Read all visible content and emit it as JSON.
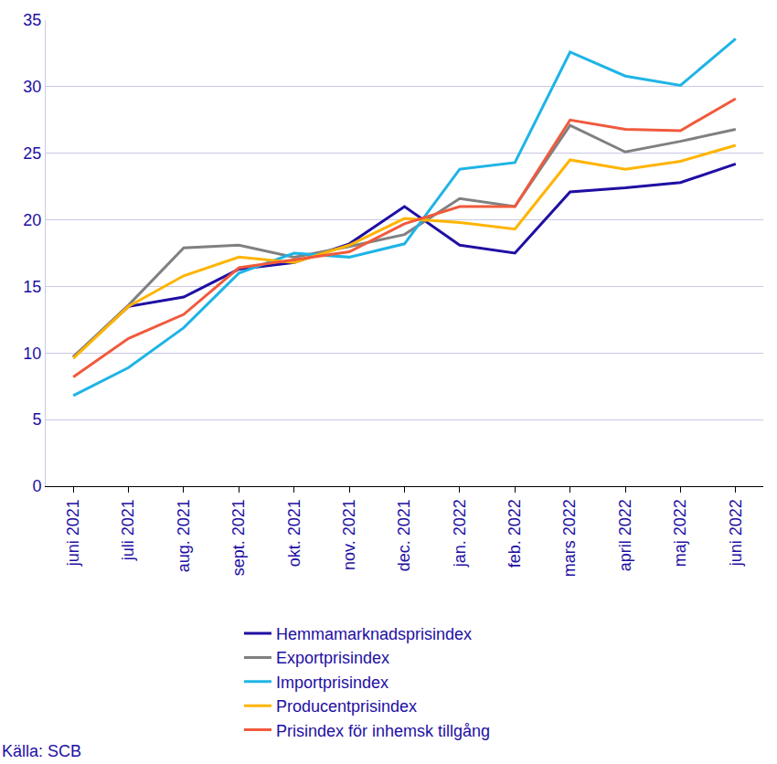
{
  "chart_data": {
    "type": "line",
    "source": "Källa: SCB",
    "categories": [
      "juni 2021",
      "juli 2021",
      "aug. 2021",
      "sept. 2021",
      "okt. 2021",
      "nov. 2021",
      "dec. 2021",
      "jan. 2022",
      "feb. 2022",
      "mars 2022",
      "april 2022",
      "maj 2022",
      "juni 2022"
    ],
    "series": [
      {
        "name": "Hemmamarknadsprisindex",
        "color": "#1e0fa3",
        "values": [
          9.7,
          13.5,
          14.2,
          16.3,
          16.8,
          18.2,
          21.0,
          18.1,
          17.5,
          22.1,
          22.4,
          22.8,
          24.2
        ]
      },
      {
        "name": "Exportprisindex",
        "color": "#808080",
        "values": [
          9.7,
          13.6,
          17.9,
          18.1,
          17.2,
          18.0,
          18.9,
          21.6,
          21.0,
          27.1,
          25.1,
          25.9,
          26.8
        ]
      },
      {
        "name": "Importprisindex",
        "color": "#1eb4e6",
        "values": [
          6.8,
          8.9,
          11.9,
          16.0,
          17.5,
          17.2,
          18.2,
          23.8,
          24.3,
          32.6,
          30.8,
          30.1,
          33.6
        ]
      },
      {
        "name": "Producentprisindex",
        "color": "#ffb400",
        "values": [
          9.6,
          13.5,
          15.8,
          17.2,
          16.8,
          18.1,
          20.1,
          19.8,
          19.3,
          24.5,
          23.8,
          24.4,
          25.6
        ]
      },
      {
        "name": "Prisindex för inhemsk tillgång",
        "color": "#f05a3c",
        "values": [
          8.2,
          11.1,
          12.9,
          16.4,
          17.0,
          17.6,
          19.7,
          21.0,
          21.0,
          27.5,
          26.8,
          26.7,
          29.1
        ]
      }
    ],
    "ylim": [
      0,
      35
    ],
    "yticks": [
      0,
      5,
      10,
      15,
      20,
      25,
      30,
      35
    ],
    "grid": true,
    "legend": "bottom"
  }
}
